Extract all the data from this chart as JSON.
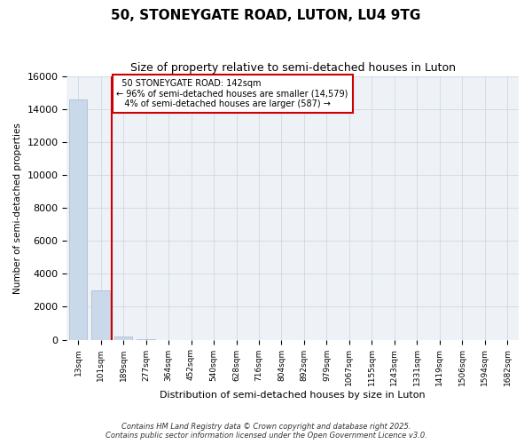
{
  "title": "50, STONEYGATE ROAD, LUTON, LU4 9TG",
  "subtitle": "Size of property relative to semi-detached houses in Luton",
  "xlabel": "Distribution of semi-detached houses by size in Luton",
  "ylabel": "Number of semi-detached properties",
  "bin_labels": [
    "13sqm",
    "101sqm",
    "189sqm",
    "277sqm",
    "364sqm",
    "452sqm",
    "540sqm",
    "628sqm",
    "716sqm",
    "804sqm",
    "892sqm",
    "979sqm",
    "1067sqm",
    "1155sqm",
    "1243sqm",
    "1331sqm",
    "1419sqm",
    "1506sqm",
    "1594sqm",
    "1682sqm"
  ],
  "values": [
    14579,
    3000,
    200,
    10,
    5,
    3,
    2,
    1,
    1,
    1,
    1,
    1,
    0,
    0,
    0,
    0,
    0,
    0,
    0,
    0
  ],
  "property_label": "50 STONEYGATE ROAD: 142sqm",
  "pct_smaller": 96,
  "n_smaller": 14579,
  "pct_larger": 4,
  "n_larger": 587,
  "bar_color": "#c9d9ea",
  "bar_edge_color": "#a0b8d0",
  "vline_color": "#cc0000",
  "annotation_box_color": "#cc0000",
  "background_color": "#eef2f7",
  "grid_color": "#c8d4e0",
  "ylim": [
    0,
    16000
  ],
  "yticks": [
    0,
    2000,
    4000,
    6000,
    8000,
    10000,
    12000,
    14000,
    16000
  ],
  "vline_x": 1.5,
  "footnote": "Contains HM Land Registry data © Crown copyright and database right 2025.\nContains public sector information licensed under the Open Government Licence v3.0."
}
